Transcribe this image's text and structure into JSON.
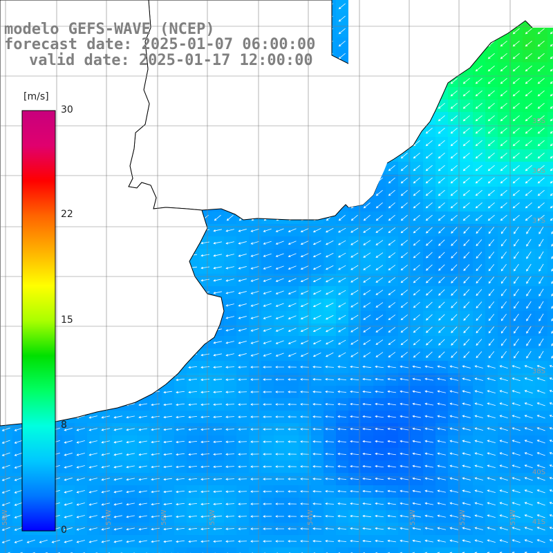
{
  "title": {
    "model": "modelo GEFS-WAVE (NCEP)",
    "forecast": "forecast date: 2025-01-07 06:00:00",
    "valid": "valid date: 2025-01-17 12:00:00"
  },
  "colorbar": {
    "unit": "[m/s]",
    "ticks": [
      "30",
      "22",
      "15",
      "8",
      "0"
    ],
    "tick_values": [
      30,
      22,
      15,
      8,
      0
    ],
    "min": 0,
    "max": 30,
    "colors": [
      "#0000ff",
      "#0078ff",
      "#00c8ff",
      "#00ffe0",
      "#00ff64",
      "#00e000",
      "#aaff00",
      "#ffff00",
      "#ffb000",
      "#ff6400",
      "#ff0000",
      "#e0006e",
      "#c8007d"
    ]
  },
  "map": {
    "lat_labels": [
      "35S",
      "36S",
      "37S",
      "38S",
      "40S",
      "41S"
    ],
    "lon_labels": [
      "58W",
      "57W",
      "56W",
      "55W",
      "54W",
      "53W",
      "52W",
      "51W"
    ],
    "ocean_color": "#00b4ff",
    "calm_color": "#0050ff",
    "strong_color": "#00ff64",
    "land_color": "#ffffff",
    "arrow_color": "#ffffff"
  }
}
